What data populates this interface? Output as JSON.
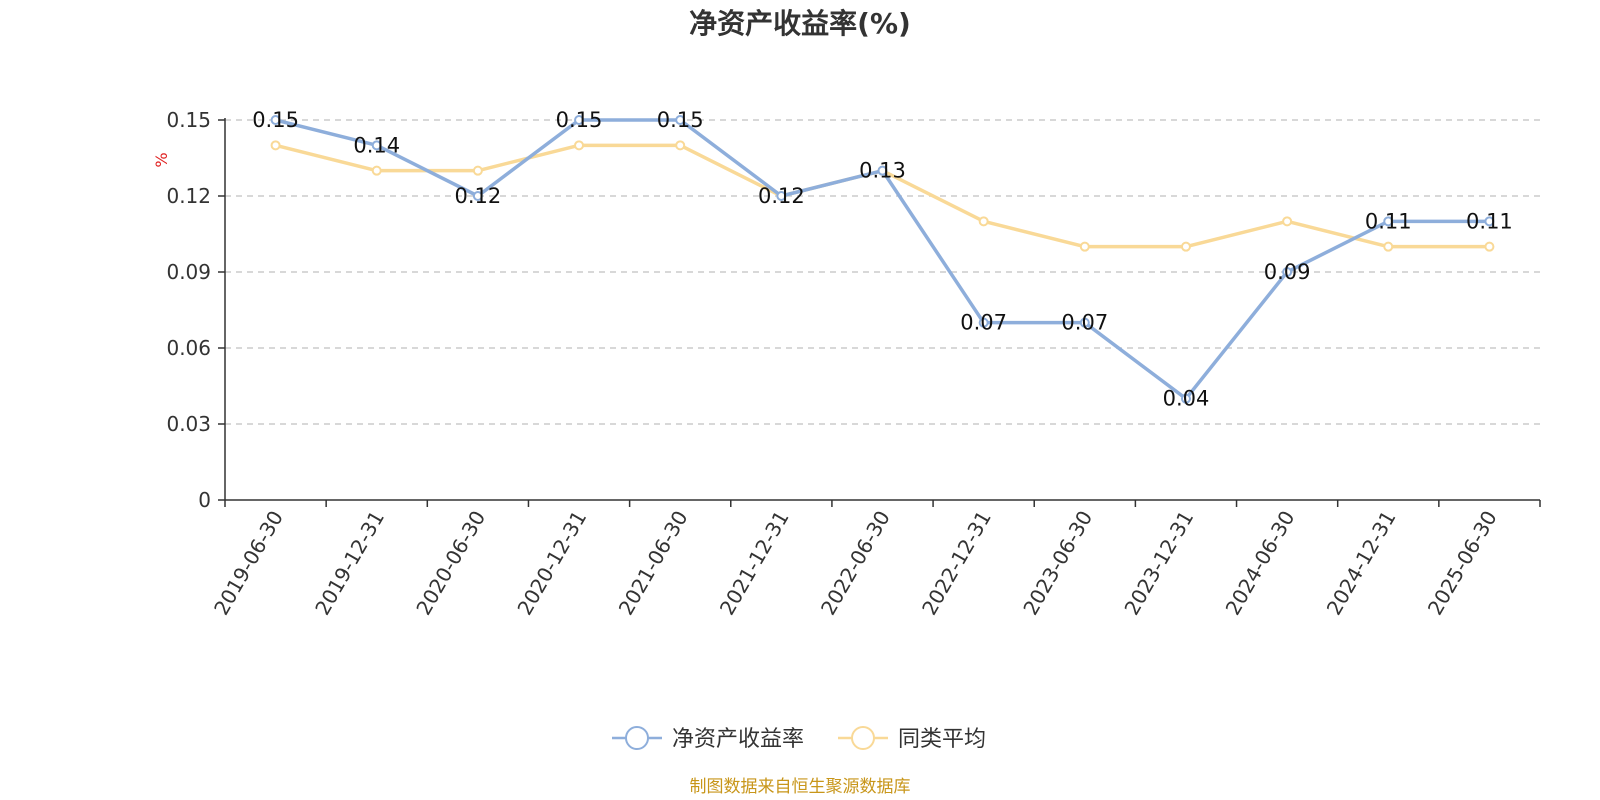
{
  "chart_data": {
    "type": "line",
    "title": "净资产收益率(%)",
    "ylabel": "%",
    "xlabel": "",
    "ylim": [
      0,
      0.15
    ],
    "yticks": [
      0,
      0.03,
      0.06,
      0.09,
      0.12,
      0.15
    ],
    "ytick_labels": [
      "0",
      "0.03",
      "0.06",
      "0.09",
      "0.12",
      "0.15"
    ],
    "grid": true,
    "legend_position": "bottom-center",
    "categories": [
      "2019-06-30",
      "2019-12-31",
      "2020-06-30",
      "2020-12-31",
      "2021-06-30",
      "2021-12-31",
      "2022-06-30",
      "2022-12-31",
      "2023-06-30",
      "2023-12-31",
      "2024-06-30",
      "2024-12-31",
      "2025-06-30"
    ],
    "series": [
      {
        "name": "净资产收益率",
        "color": "#8eaedb",
        "values": [
          0.15,
          0.14,
          0.12,
          0.15,
          0.15,
          0.12,
          0.13,
          0.07,
          0.07,
          0.04,
          0.09,
          0.11,
          0.11
        ],
        "data_labels": [
          "0.15",
          "0.14",
          "0.12",
          "0.15",
          "0.15",
          "0.12",
          "0.13",
          "0.07",
          "0.07",
          "0.04",
          "0.09",
          "0.11",
          "0.11"
        ]
      },
      {
        "name": "同类平均",
        "color": "#f9d997",
        "values": [
          0.14,
          0.13,
          0.13,
          0.14,
          0.14,
          0.12,
          0.13,
          0.11,
          0.1,
          0.1,
          0.11,
          0.1,
          0.1
        ]
      }
    ],
    "source_note": "制图数据来自恒生聚源数据库"
  }
}
